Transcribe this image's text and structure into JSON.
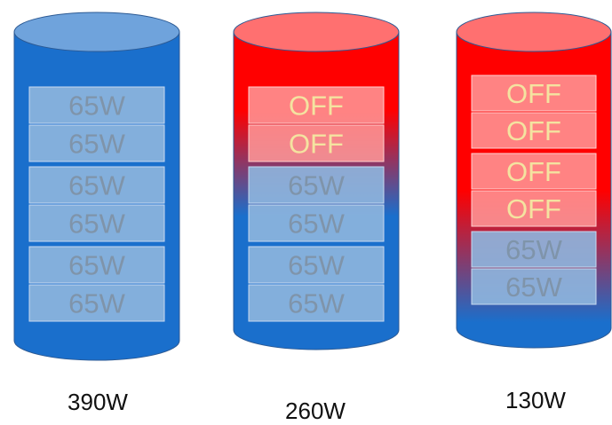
{
  "colors": {
    "on_fill": "#1a6fcc",
    "on_top": "#6fa3dc",
    "off_fill": "#ff0000",
    "off_top": "#ff7070",
    "on_slot": "#8fb6de",
    "on_text": "#7f94aa",
    "off_slot": "#ff9a9a",
    "off_text": "#f4e3a0"
  },
  "cylinders": [
    {
      "name": "cylinder-390w",
      "total_label": "390W",
      "slots": [
        "65W",
        "65W",
        "65W",
        "65W",
        "65W",
        "65W"
      ],
      "states": [
        "on",
        "on",
        "on",
        "on",
        "on",
        "on"
      ],
      "red_fraction": 0.0
    },
    {
      "name": "cylinder-260w",
      "total_label": "260W",
      "slots": [
        "OFF",
        "OFF",
        "65W",
        "65W",
        "65W",
        "65W"
      ],
      "states": [
        "off",
        "off",
        "on",
        "on",
        "on",
        "on"
      ],
      "red_fraction": 0.33
    },
    {
      "name": "cylinder-130w",
      "total_label": "130W",
      "slots": [
        "OFF",
        "OFF",
        "OFF",
        "OFF",
        "65W",
        "65W"
      ],
      "states": [
        "off",
        "off",
        "off",
        "off",
        "on",
        "on"
      ],
      "red_fraction": 0.67
    }
  ]
}
